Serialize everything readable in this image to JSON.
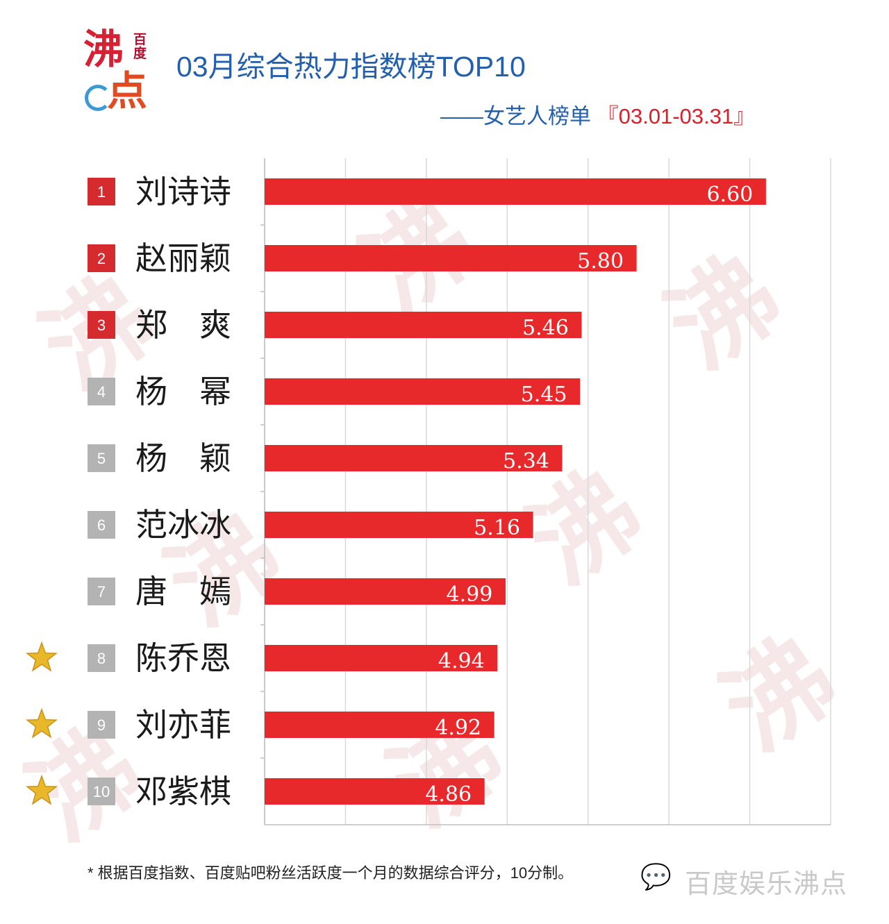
{
  "header": {
    "logo_main": "沸",
    "logo_badge": "百度",
    "logo_sub": "点",
    "title": "03月综合热力指数榜TOP10",
    "subtitle_prefix": "——女艺人榜单",
    "subtitle_date": "『03.01-03.31』"
  },
  "chart_data": {
    "type": "bar",
    "orientation": "horizontal",
    "categories": [
      "刘诗诗",
      "赵丽颖",
      "郑　爽",
      "杨　幂",
      "杨　颖",
      "范冰冰",
      "唐　嫣",
      "陈乔恩",
      "刘亦菲",
      "邓紫棋"
    ],
    "ranks": [
      "1",
      "2",
      "3",
      "4",
      "5",
      "6",
      "7",
      "8",
      "9",
      "10"
    ],
    "values": [
      6.6,
      5.8,
      5.46,
      5.45,
      5.34,
      5.16,
      4.99,
      4.94,
      4.92,
      4.86
    ],
    "value_labels": [
      "6.60",
      "5.80",
      "5.46",
      "5.45",
      "5.34",
      "5.16",
      "4.99",
      "4.94",
      "4.92",
      "4.86"
    ],
    "starred": [
      false,
      false,
      false,
      false,
      false,
      false,
      false,
      true,
      true,
      true
    ],
    "xlim": [
      3.5,
      7.0
    ],
    "grid": true,
    "colors": {
      "bar": "#e8292b",
      "rank_top": "#d52a2e",
      "rank_other": "#b3b3b3",
      "star": "#e8b82a",
      "grid": "#d9d9d9"
    }
  },
  "footer": {
    "note": "* 根据百度指数、百度贴吧粉丝活跃度一个月的数据综合评分，10分制。",
    "brand": "百度娱乐沸点",
    "brand_icon": "wechat-icon"
  }
}
